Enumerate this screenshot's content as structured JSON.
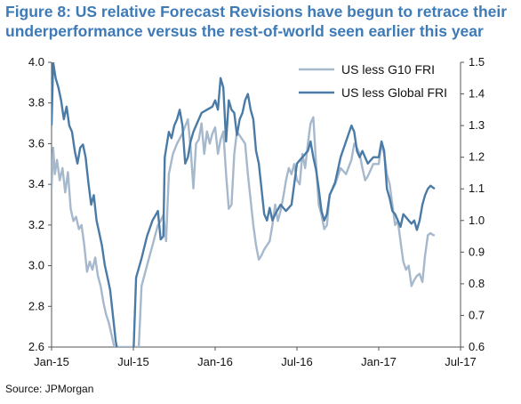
{
  "title": "Figure 8: US relative Forecast Revisions have begun to retrace their underperformance versus the rest-of-world seen earlier this year",
  "source": "Source: JPMorgan",
  "colors": {
    "g10": "#a6b8cc",
    "global": "#4a7ba7"
  },
  "chart_data": {
    "type": "line",
    "title": "Figure 8: US relative Forecast Revisions have begun to retrace their underperformance versus the rest-of-world seen earlier this year",
    "x_ticks": [
      "Jan-15",
      "Jul-15",
      "Jan-16",
      "Jul-16",
      "Jan-17",
      "Jul-17"
    ],
    "y_left": {
      "lim": [
        2.6,
        4.0
      ],
      "ticks": [
        "2.6",
        "2.8",
        "3.0",
        "3.2",
        "3.4",
        "3.6",
        "3.8",
        "4.0"
      ]
    },
    "y_right": {
      "lim": [
        0.6,
        1.5
      ],
      "ticks": [
        "0.6",
        "0.7",
        "0.8",
        "0.9",
        "1.0",
        "1.1",
        "1.2",
        "1.3",
        "1.4",
        "1.5"
      ]
    },
    "legend_placement": "top-right",
    "series": [
      {
        "name": "US less G10 FRI",
        "axis": "left",
        "points": [
          [
            0.0,
            3.38
          ],
          [
            0.06,
            3.58
          ],
          [
            0.12,
            3.45
          ],
          [
            0.2,
            3.52
          ],
          [
            0.3,
            3.42
          ],
          [
            0.4,
            3.48
          ],
          [
            0.5,
            3.36
          ],
          [
            0.6,
            3.46
          ],
          [
            0.7,
            3.28
          ],
          [
            0.8,
            3.22
          ],
          [
            0.9,
            3.24
          ],
          [
            1.0,
            3.18
          ],
          [
            1.1,
            3.2
          ],
          [
            1.2,
            3.1
          ],
          [
            1.3,
            2.97
          ],
          [
            1.4,
            3.02
          ],
          [
            1.5,
            2.98
          ],
          [
            1.6,
            3.04
          ],
          [
            1.7,
            2.95
          ],
          [
            1.8,
            2.9
          ],
          [
            1.9,
            2.82
          ],
          [
            2.0,
            2.76
          ],
          [
            2.1,
            2.72
          ],
          [
            2.2,
            2.66
          ],
          [
            2.3,
            2.6
          ],
          [
            3.2,
            2.6
          ],
          [
            3.3,
            2.9
          ],
          [
            3.5,
            3.0
          ],
          [
            3.7,
            3.1
          ],
          [
            3.9,
            3.2
          ],
          [
            4.0,
            3.22
          ],
          [
            4.1,
            3.25
          ],
          [
            4.2,
            3.12
          ],
          [
            4.3,
            3.45
          ],
          [
            4.45,
            3.55
          ],
          [
            4.6,
            3.6
          ],
          [
            4.8,
            3.65
          ],
          [
            5.0,
            3.72
          ],
          [
            5.1,
            3.58
          ],
          [
            5.2,
            3.38
          ],
          [
            5.3,
            3.6
          ],
          [
            5.4,
            3.62
          ],
          [
            5.5,
            3.7
          ],
          [
            5.6,
            3.55
          ],
          [
            5.7,
            3.66
          ],
          [
            5.8,
            3.6
          ],
          [
            5.9,
            3.65
          ],
          [
            6.0,
            3.68
          ],
          [
            6.1,
            3.55
          ],
          [
            6.2,
            3.62
          ],
          [
            6.3,
            3.66
          ],
          [
            6.4,
            3.45
          ],
          [
            6.5,
            3.28
          ],
          [
            6.6,
            3.3
          ],
          [
            6.7,
            3.55
          ],
          [
            6.8,
            3.66
          ],
          [
            6.9,
            3.64
          ],
          [
            7.0,
            3.62
          ],
          [
            7.1,
            3.6
          ],
          [
            7.2,
            3.45
          ],
          [
            7.4,
            3.2
          ],
          [
            7.5,
            3.1
          ],
          [
            7.6,
            3.03
          ],
          [
            7.7,
            3.05
          ],
          [
            7.8,
            3.08
          ],
          [
            8.0,
            3.12
          ],
          [
            8.1,
            3.2
          ],
          [
            8.2,
            3.3
          ],
          [
            8.3,
            3.22
          ],
          [
            8.4,
            3.27
          ],
          [
            8.5,
            3.34
          ],
          [
            8.6,
            3.42
          ],
          [
            8.7,
            3.48
          ],
          [
            8.8,
            3.45
          ],
          [
            8.9,
            3.5
          ],
          [
            9.0,
            3.42
          ],
          [
            9.1,
            3.4
          ],
          [
            9.2,
            3.55
          ],
          [
            9.3,
            3.48
          ],
          [
            9.4,
            3.6
          ],
          [
            9.5,
            3.7
          ],
          [
            9.6,
            3.73
          ],
          [
            9.7,
            3.5
          ],
          [
            9.8,
            3.3
          ],
          [
            9.9,
            3.25
          ],
          [
            10.0,
            3.18
          ],
          [
            10.1,
            3.2
          ],
          [
            10.2,
            3.35
          ],
          [
            10.4,
            3.4
          ],
          [
            10.6,
            3.48
          ],
          [
            10.8,
            3.45
          ],
          [
            11.0,
            3.52
          ],
          [
            11.1,
            3.6
          ],
          [
            11.2,
            3.58
          ],
          [
            11.3,
            3.55
          ],
          [
            11.4,
            3.48
          ],
          [
            11.5,
            3.42
          ],
          [
            11.6,
            3.44
          ],
          [
            11.8,
            3.5
          ],
          [
            12.0,
            3.5
          ],
          [
            12.1,
            3.6
          ],
          [
            12.2,
            3.55
          ],
          [
            12.3,
            3.45
          ],
          [
            12.4,
            3.4
          ],
          [
            12.5,
            3.3
          ],
          [
            12.6,
            3.2
          ],
          [
            12.7,
            3.22
          ],
          [
            12.8,
            3.12
          ],
          [
            12.9,
            3.02
          ],
          [
            13.0,
            2.98
          ],
          [
            13.1,
            3.0
          ],
          [
            13.2,
            2.9
          ],
          [
            13.3,
            2.93
          ],
          [
            13.4,
            2.95
          ],
          [
            13.5,
            2.96
          ],
          [
            13.6,
            2.92
          ],
          [
            13.7,
            3.05
          ],
          [
            13.8,
            3.15
          ],
          [
            13.9,
            3.16
          ],
          [
            14.0,
            3.15
          ],
          [
            14.05,
            3.15
          ]
        ]
      },
      {
        "name": "US less Global FRI",
        "axis": "right",
        "points": [
          [
            0.0,
            1.3
          ],
          [
            0.06,
            1.5
          ],
          [
            0.15,
            1.45
          ],
          [
            0.25,
            1.42
          ],
          [
            0.35,
            1.38
          ],
          [
            0.45,
            1.32
          ],
          [
            0.55,
            1.36
          ],
          [
            0.65,
            1.3
          ],
          [
            0.75,
            1.28
          ],
          [
            0.85,
            1.22
          ],
          [
            0.95,
            1.18
          ],
          [
            1.05,
            1.23
          ],
          [
            1.15,
            1.24
          ],
          [
            1.25,
            1.2
          ],
          [
            1.35,
            1.12
          ],
          [
            1.45,
            1.05
          ],
          [
            1.55,
            1.08
          ],
          [
            1.65,
            1.0
          ],
          [
            1.75,
            0.96
          ],
          [
            1.85,
            0.92
          ],
          [
            1.95,
            0.86
          ],
          [
            2.05,
            0.82
          ],
          [
            2.15,
            0.78
          ],
          [
            2.25,
            0.7
          ],
          [
            2.35,
            0.62
          ],
          [
            2.45,
            0.57
          ],
          [
            3.0,
            0.57
          ],
          [
            3.1,
            0.82
          ],
          [
            3.3,
            0.88
          ],
          [
            3.5,
            0.95
          ],
          [
            3.7,
            1.0
          ],
          [
            3.9,
            1.03
          ],
          [
            4.0,
            0.94
          ],
          [
            4.1,
            0.95
          ],
          [
            4.15,
            1.2
          ],
          [
            4.3,
            1.28
          ],
          [
            4.4,
            1.26
          ],
          [
            4.5,
            1.3
          ],
          [
            4.6,
            1.32
          ],
          [
            4.7,
            1.35
          ],
          [
            4.8,
            1.3
          ],
          [
            4.9,
            1.18
          ],
          [
            5.0,
            1.2
          ],
          [
            5.1,
            1.25
          ],
          [
            5.2,
            1.28
          ],
          [
            5.3,
            1.3
          ],
          [
            5.5,
            1.34
          ],
          [
            5.7,
            1.35
          ],
          [
            5.9,
            1.36
          ],
          [
            6.0,
            1.38
          ],
          [
            6.1,
            1.35
          ],
          [
            6.2,
            1.45
          ],
          [
            6.3,
            1.42
          ],
          [
            6.4,
            1.25
          ],
          [
            6.5,
            1.38
          ],
          [
            6.6,
            1.35
          ],
          [
            6.7,
            1.34
          ],
          [
            6.8,
            1.27
          ],
          [
            6.9,
            1.32
          ],
          [
            7.0,
            1.34
          ],
          [
            7.1,
            1.38
          ],
          [
            7.2,
            1.4
          ],
          [
            7.3,
            1.35
          ],
          [
            7.4,
            1.32
          ],
          [
            7.5,
            1.22
          ],
          [
            7.6,
            1.18
          ],
          [
            7.8,
            1.02
          ],
          [
            7.9,
            1.0
          ],
          [
            8.0,
            1.04
          ],
          [
            8.1,
            1.0
          ],
          [
            8.2,
            1.02
          ],
          [
            8.4,
            1.05
          ],
          [
            8.6,
            1.03
          ],
          [
            8.8,
            1.05
          ],
          [
            9.0,
            1.18
          ],
          [
            9.2,
            1.2
          ],
          [
            9.4,
            1.22
          ],
          [
            9.5,
            1.25
          ],
          [
            9.6,
            1.2
          ],
          [
            9.7,
            1.16
          ],
          [
            9.8,
            1.1
          ],
          [
            9.9,
            1.03
          ],
          [
            10.0,
            1.0
          ],
          [
            10.1,
            1.02
          ],
          [
            10.2,
            1.08
          ],
          [
            10.4,
            1.12
          ],
          [
            10.6,
            1.2
          ],
          [
            10.8,
            1.25
          ],
          [
            11.0,
            1.3
          ],
          [
            11.1,
            1.28
          ],
          [
            11.2,
            1.22
          ],
          [
            11.3,
            1.2
          ],
          [
            11.4,
            1.22
          ],
          [
            11.6,
            1.18
          ],
          [
            11.8,
            1.2
          ],
          [
            12.0,
            1.2
          ],
          [
            12.1,
            1.25
          ],
          [
            12.2,
            1.22
          ],
          [
            12.3,
            1.1
          ],
          [
            12.4,
            1.07
          ],
          [
            12.5,
            1.03
          ],
          [
            12.6,
            1.02
          ],
          [
            12.7,
            1.0
          ],
          [
            12.8,
            0.98
          ],
          [
            12.9,
            1.02
          ],
          [
            13.0,
            1.01
          ],
          [
            13.1,
            1.0
          ],
          [
            13.2,
            0.99
          ],
          [
            13.3,
            1.0
          ],
          [
            13.4,
            0.97
          ],
          [
            13.5,
            1.0
          ],
          [
            13.6,
            1.05
          ],
          [
            13.7,
            1.08
          ],
          [
            13.8,
            1.1
          ],
          [
            13.9,
            1.11
          ],
          [
            14.05,
            1.1
          ]
        ]
      }
    ]
  }
}
